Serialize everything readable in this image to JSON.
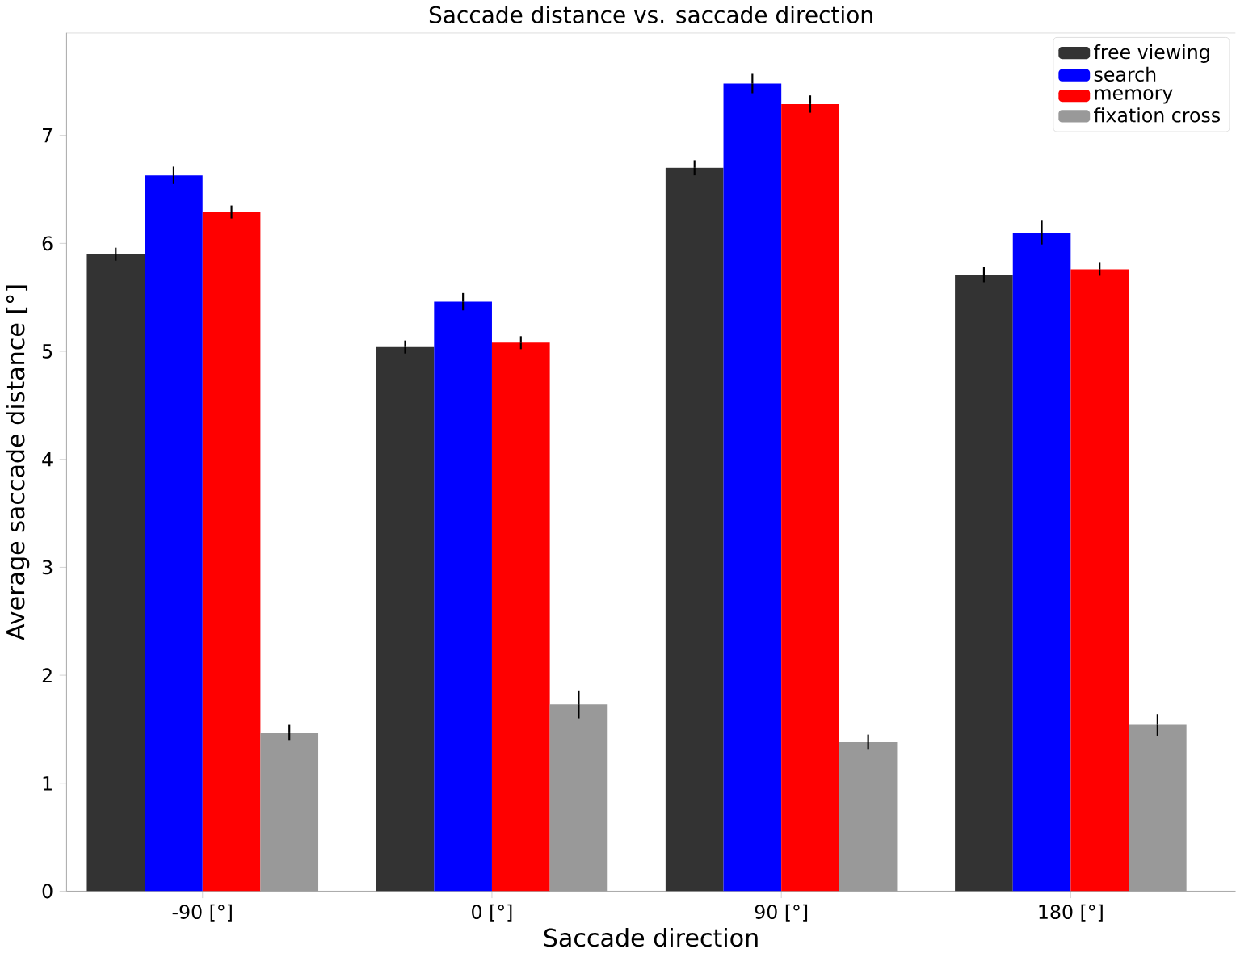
{
  "chart_data": {
    "type": "bar",
    "title": "Saccade distance vs. saccade direction",
    "xlabel": "Saccade direction",
    "ylabel": "Average saccade distance [°]",
    "categories": [
      "-90 [°]",
      "0 [°]",
      "90 [°]",
      "180 [°]"
    ],
    "series": [
      {
        "name": "free viewing",
        "color": "#333333",
        "values": [
          5.9,
          5.04,
          6.7,
          5.71
        ],
        "errors": [
          0.06,
          0.06,
          0.07,
          0.07
        ]
      },
      {
        "name": "search",
        "color": "#0000ff",
        "values": [
          6.63,
          5.46,
          7.48,
          6.1
        ],
        "errors": [
          0.08,
          0.08,
          0.09,
          0.11
        ]
      },
      {
        "name": "memory",
        "color": "#ff0000",
        "values": [
          6.29,
          5.08,
          7.29,
          5.76
        ],
        "errors": [
          0.06,
          0.06,
          0.08,
          0.06
        ]
      },
      {
        "name": "fixation cross",
        "color": "#999999",
        "values": [
          1.47,
          1.73,
          1.38,
          1.54
        ],
        "errors": [
          0.07,
          0.13,
          0.07,
          0.1
        ]
      }
    ],
    "ylim": [
      0,
      7.95
    ],
    "yticks": [
      0,
      1,
      2,
      3,
      4,
      5,
      6,
      7
    ],
    "grid": false,
    "legend": "top right"
  }
}
